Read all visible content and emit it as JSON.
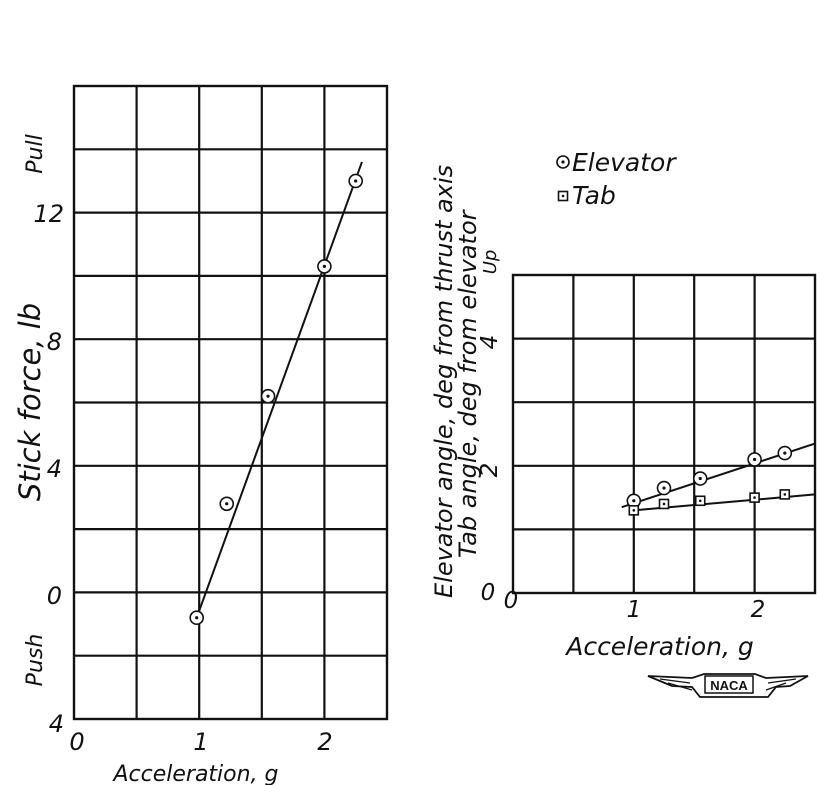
{
  "chart_data": [
    {
      "type": "scatter",
      "xlabel": "Acceleration, g",
      "ylabel": "Stick force, lb",
      "region_labels": {
        "upper": "Pull",
        "lower": "Push"
      },
      "xlim": [
        0,
        2.5
      ],
      "ylim": [
        -4,
        16
      ],
      "x_tick_labels": [
        "0",
        "1",
        "2"
      ],
      "y_tick_labels": [
        "4",
        "0",
        "4",
        "8",
        "12"
      ],
      "y_tick_values": [
        -4,
        0,
        4,
        8,
        12
      ],
      "x_tick_values": [
        0,
        1,
        2
      ],
      "grid": true,
      "series": [
        {
          "marker": "circle-dot",
          "points": [
            {
              "x": 0.98,
              "y": -0.8
            },
            {
              "x": 1.22,
              "y": 2.8
            },
            {
              "x": 1.55,
              "y": 6.2
            },
            {
              "x": 2.0,
              "y": 10.3
            },
            {
              "x": 2.25,
              "y": 13.0
            }
          ],
          "fit_line": [
            {
              "x": 0.98,
              "y": -0.8
            },
            {
              "x": 2.3,
              "y": 13.6
            }
          ]
        }
      ]
    },
    {
      "type": "scatter",
      "xlabel": "Acceleration, g",
      "ylabel_lines": [
        "Elevator angle, deg from thrust axis",
        "Tab angle, deg from elevator"
      ],
      "region_label": "Up",
      "xlim": [
        0,
        2.5
      ],
      "ylim": [
        0,
        5
      ],
      "x_tick_labels": [
        "0",
        "1",
        "2"
      ],
      "x_tick_values": [
        0,
        1,
        2
      ],
      "y_tick_labels": [
        "0",
        "2",
        "4"
      ],
      "y_tick_values": [
        0,
        2,
        4
      ],
      "grid": true,
      "legend_position": "top",
      "series": [
        {
          "name": "Elevator",
          "marker": "circle-dot",
          "points": [
            {
              "x": 1.0,
              "y": 1.45
            },
            {
              "x": 1.25,
              "y": 1.65
            },
            {
              "x": 1.55,
              "y": 1.8
            },
            {
              "x": 2.0,
              "y": 2.1
            },
            {
              "x": 2.25,
              "y": 2.2
            }
          ],
          "fit_line": [
            {
              "x": 0.9,
              "y": 1.35
            },
            {
              "x": 2.5,
              "y": 2.35
            }
          ]
        },
        {
          "name": "Tab",
          "marker": "square-dot",
          "points": [
            {
              "x": 1.0,
              "y": 1.3
            },
            {
              "x": 1.25,
              "y": 1.4
            },
            {
              "x": 1.55,
              "y": 1.45
            },
            {
              "x": 2.0,
              "y": 1.5
            },
            {
              "x": 2.25,
              "y": 1.55
            }
          ],
          "fit_line": [
            {
              "x": 1.0,
              "y": 1.3
            },
            {
              "x": 2.5,
              "y": 1.55
            }
          ]
        }
      ]
    }
  ],
  "logo": {
    "text": "NACA"
  }
}
